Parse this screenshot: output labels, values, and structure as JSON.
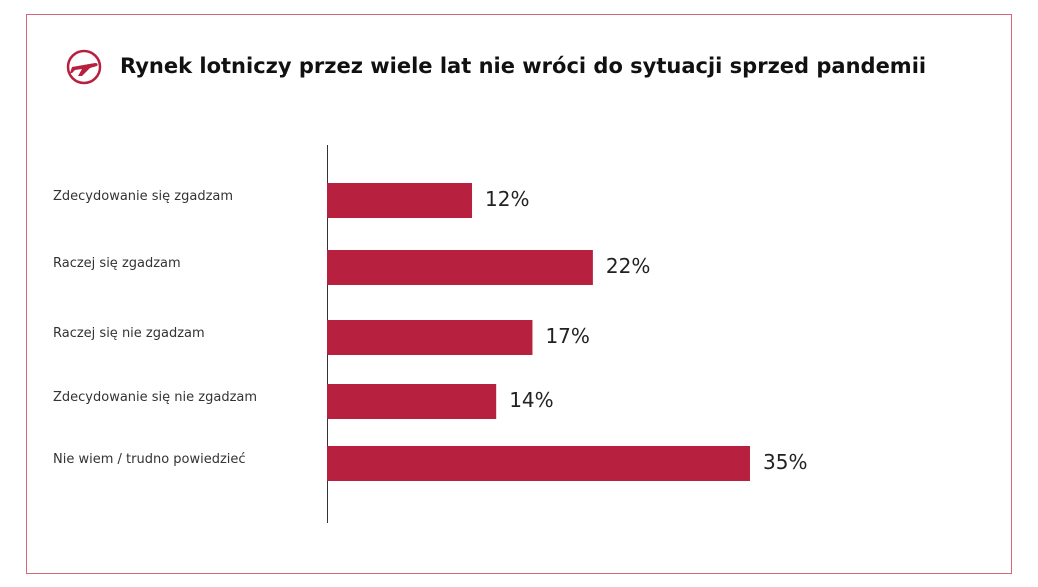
{
  "chart_data": {
    "type": "bar",
    "orientation": "horizontal",
    "title": "Rynek lotniczy przez wiele lat nie wróci do sytuacji sprzed pandemii",
    "categories": [
      "Zdecydowanie się zgadzam",
      "Raczej się zgadzam",
      "Raczej się nie zgadzam",
      "Zdecydowanie się nie zgadzam",
      "Nie wiem / trudno powiedzieć"
    ],
    "values": [
      12,
      22,
      17,
      14,
      35
    ],
    "value_labels": [
      "12%",
      "22%",
      "17%",
      "14%",
      "35%"
    ],
    "color": "#b8203f"
  }
}
